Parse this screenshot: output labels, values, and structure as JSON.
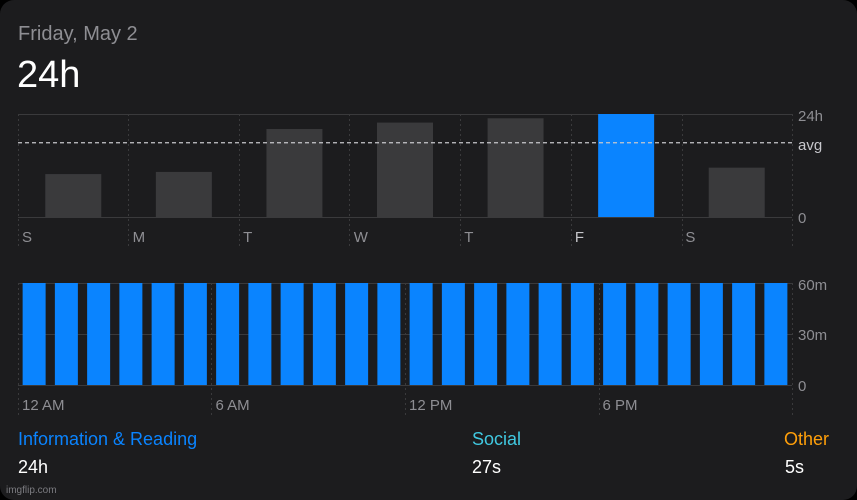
{
  "header": {
    "date": "Friday, May 2",
    "total": "24h"
  },
  "weekly_chart": {
    "days": [
      "S",
      "M",
      "T",
      "W",
      "T",
      "F",
      "S"
    ],
    "values_hours": [
      10,
      10.5,
      20.5,
      22,
      23,
      24,
      11.5
    ],
    "highlight_index": 5,
    "ymax_hours": 24,
    "avg_hours": 17.3,
    "tick_top": "24h",
    "tick_avg": "avg",
    "tick_zero": "0"
  },
  "hourly_chart": {
    "values_minutes": [
      60,
      60,
      60,
      60,
      60,
      60,
      60,
      60,
      60,
      60,
      60,
      60,
      60,
      60,
      60,
      60,
      60,
      60,
      60,
      60,
      60,
      60,
      60,
      60
    ],
    "ymax_minutes": 60,
    "x_labels": [
      "12 AM",
      "6 AM",
      "12 PM",
      "6 PM"
    ],
    "tick_top": "60m",
    "tick_mid": "30m",
    "tick_zero": "0"
  },
  "legend": [
    {
      "label": "Information & Reading",
      "value": "24h",
      "color": "#0a84ff"
    },
    {
      "label": "Social",
      "value": "27s",
      "color": "#40c8e0"
    },
    {
      "label": "Other",
      "value": "5s",
      "color": "#ff9f0a"
    }
  ],
  "colors": {
    "bar_gray": "#3a3a3c",
    "bar_blue": "#0a84ff",
    "grid": "#3a3a3c",
    "tick_text": "#8e8e93"
  },
  "watermark": "imgflip.com"
}
